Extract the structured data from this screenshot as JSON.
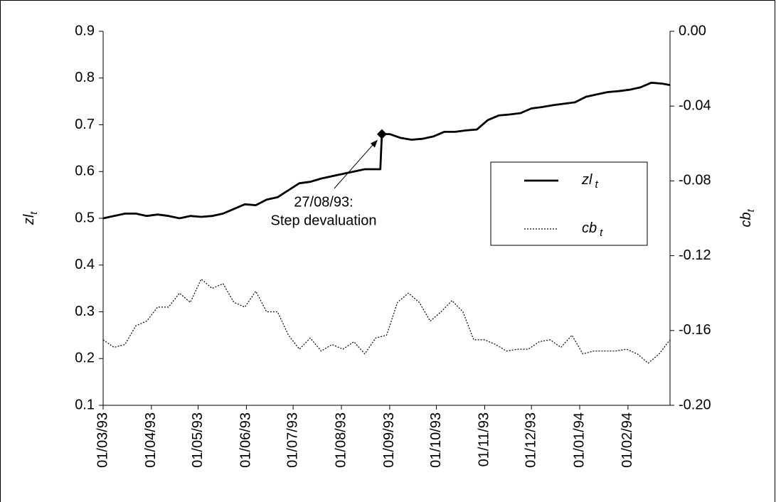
{
  "chart_data": {
    "type": "line",
    "ylabel": {
      "text": "zl",
      "sub": "t"
    },
    "y2label": {
      "text": "cb",
      "sub": "t"
    },
    "xlim": [
      "01/03/93",
      "28/02/94"
    ],
    "xticks": [
      "01/03/93",
      "01/04/93",
      "01/05/93",
      "01/06/93",
      "01/07/93",
      "01/08/93",
      "01/09/93",
      "01/10/93",
      "01/11/93",
      "01/12/93",
      "01/01/94",
      "01/02/94"
    ],
    "ylim": [
      0.1,
      0.9
    ],
    "yticks": [
      0.1,
      0.2,
      0.3,
      0.4,
      0.5,
      0.6,
      0.7,
      0.8,
      0.9
    ],
    "y2lim": [
      -0.2,
      0
    ],
    "y2ticks": [
      {
        "value": -0.2,
        "label": "-0.20"
      },
      {
        "value": -0.16,
        "label": "-0.16"
      },
      {
        "value": -0.12,
        "label": "-0.12"
      },
      {
        "value": -0.08,
        "label": "-0.08"
      },
      {
        "value": -0.04,
        "label": "-0.04"
      },
      {
        "value": 0,
        "label": "0.00"
      }
    ],
    "grid": false,
    "legend": "center-right",
    "series": [
      {
        "name": "zl",
        "subscript": "t",
        "color": "#000000",
        "line_style": "solid",
        "x": [
          "01/03/93",
          "08/03/93",
          "15/03/93",
          "22/03/93",
          "29/03/93",
          "05/04/93",
          "12/04/93",
          "19/04/93",
          "26/04/93",
          "03/05/93",
          "10/05/93",
          "17/05/93",
          "24/05/93",
          "31/05/93",
          "07/06/93",
          "14/06/93",
          "21/06/93",
          "28/06/93",
          "05/07/93",
          "12/07/93",
          "19/07/93",
          "26/07/93",
          "02/08/93",
          "09/08/93",
          "16/08/93",
          "26/08/93",
          "27/08/93",
          "01/09/93",
          "08/09/93",
          "15/09/93",
          "22/09/93",
          "29/09/93",
          "06/10/93",
          "13/10/93",
          "20/10/93",
          "27/10/93",
          "03/11/93",
          "10/11/93",
          "17/11/93",
          "24/11/93",
          "01/12/93",
          "08/12/93",
          "15/12/93",
          "22/12/93",
          "29/12/93",
          "05/01/94",
          "12/01/94",
          "19/01/94",
          "26/01/94",
          "02/02/94",
          "09/02/94",
          "16/02/94",
          "23/02/94",
          "28/02/94"
        ],
        "values": [
          0.5,
          0.505,
          0.51,
          0.51,
          0.505,
          0.508,
          0.505,
          0.5,
          0.505,
          0.503,
          0.505,
          0.51,
          0.52,
          0.53,
          0.528,
          0.54,
          0.545,
          0.56,
          0.575,
          0.578,
          0.585,
          0.59,
          0.595,
          0.6,
          0.605,
          0.605,
          0.68,
          0.68,
          0.672,
          0.668,
          0.67,
          0.675,
          0.685,
          0.685,
          0.688,
          0.69,
          0.71,
          0.72,
          0.722,
          0.725,
          0.735,
          0.738,
          0.742,
          0.745,
          0.748,
          0.76,
          0.765,
          0.77,
          0.772,
          0.775,
          0.78,
          0.79,
          0.788,
          0.785
        ],
        "marker": {
          "index": 26,
          "shape": "diamond"
        }
      },
      {
        "name": "cb",
        "subscript": "t",
        "color": "#000000",
        "line_style": "dotted",
        "axis": "y2",
        "x": [
          "01/03/93",
          "08/03/93",
          "15/03/93",
          "22/03/93",
          "29/03/93",
          "05/04/93",
          "12/04/93",
          "19/04/93",
          "26/04/93",
          "03/05/93",
          "10/05/93",
          "17/05/93",
          "24/05/93",
          "31/05/93",
          "07/06/93",
          "14/06/93",
          "21/06/93",
          "28/06/93",
          "05/07/93",
          "12/07/93",
          "19/07/93",
          "26/07/93",
          "02/08/93",
          "09/08/93",
          "16/08/93",
          "23/08/93",
          "30/08/93",
          "06/09/93",
          "13/09/93",
          "20/09/93",
          "27/09/93",
          "04/10/93",
          "11/10/93",
          "18/10/93",
          "25/10/93",
          "01/11/93",
          "08/11/93",
          "15/11/93",
          "22/11/93",
          "29/11/93",
          "06/12/93",
          "13/12/93",
          "20/12/93",
          "27/12/93",
          "03/01/94",
          "10/01/94",
          "17/01/94",
          "24/01/94",
          "31/01/94",
          "07/02/94",
          "14/02/94",
          "21/02/94",
          "28/02/94"
        ],
        "values": [
          -0.165,
          -0.169,
          -0.1675,
          -0.1575,
          -0.155,
          -0.1475,
          -0.1475,
          -0.14,
          -0.145,
          -0.1325,
          -0.1375,
          -0.135,
          -0.145,
          -0.1475,
          -0.139,
          -0.15,
          -0.15,
          -0.1625,
          -0.17,
          -0.164,
          -0.171,
          -0.1675,
          -0.17,
          -0.166,
          -0.1725,
          -0.164,
          -0.1625,
          -0.145,
          -0.14,
          -0.145,
          -0.155,
          -0.15,
          -0.144,
          -0.15,
          -0.165,
          -0.165,
          -0.1675,
          -0.171,
          -0.17,
          -0.17,
          -0.166,
          -0.165,
          -0.169,
          -0.1625,
          -0.1725,
          -0.171,
          -0.171,
          -0.171,
          -0.17,
          -0.1725,
          -0.1775,
          -0.1725,
          -0.165
        ]
      }
    ],
    "annotation": {
      "lines": [
        "27/08/93:",
        "Step devaluation"
      ],
      "point": {
        "series": 0,
        "index": 26
      }
    }
  }
}
